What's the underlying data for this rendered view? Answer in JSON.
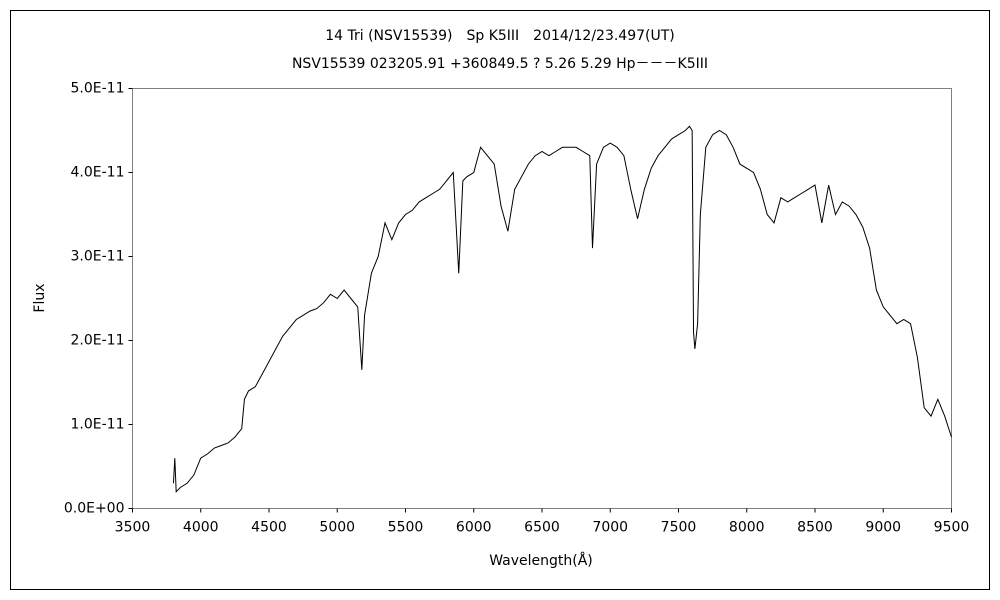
{
  "chart_data": {
    "type": "line",
    "title": "14 Tri (NSV15539)　Sp K5III　2014/12/23.497(UT)",
    "subtitle": "NSV15539 023205.91 +360849.5 ? 5.26 5.29 Hp－－－K5III",
    "x_label": "Wavelength(Å)",
    "y_label": "Flux",
    "color": "#000000",
    "xlim": [
      3500,
      9500
    ],
    "xticks": [
      3500,
      4000,
      4500,
      5000,
      5500,
      6000,
      6500,
      7000,
      7500,
      8000,
      8500,
      9000,
      9500
    ],
    "ylim": [
      0,
      5e-11
    ],
    "yticks": [
      {
        "value": 0,
        "label": "0.0E+00"
      },
      {
        "value": 1e-11,
        "label": "1.0E-11"
      },
      {
        "value": 2e-11,
        "label": "2.0E-11"
      },
      {
        "value": 3e-11,
        "label": "3.0E-11"
      },
      {
        "value": 4e-11,
        "label": "4.0E-11"
      },
      {
        "value": 5e-11,
        "label": "5.0E-11"
      }
    ],
    "x": [
      3800,
      3810,
      3820,
      3850,
      3900,
      3950,
      4000,
      4050,
      4100,
      4150,
      4200,
      4250,
      4300,
      4320,
      4350,
      4400,
      4450,
      4500,
      4550,
      4600,
      4650,
      4700,
      4750,
      4800,
      4850,
      4900,
      4950,
      5000,
      5050,
      5100,
      5150,
      5180,
      5200,
      5250,
      5300,
      5350,
      5400,
      5450,
      5500,
      5550,
      5600,
      5650,
      5700,
      5750,
      5800,
      5850,
      5890,
      5920,
      5950,
      6000,
      6050,
      6100,
      6150,
      6200,
      6250,
      6280,
      6300,
      6350,
      6400,
      6450,
      6500,
      6550,
      6600,
      6650,
      6700,
      6750,
      6800,
      6850,
      6870,
      6900,
      6950,
      7000,
      7050,
      7100,
      7150,
      7200,
      7250,
      7300,
      7350,
      7400,
      7450,
      7500,
      7550,
      7580,
      7600,
      7610,
      7620,
      7640,
      7660,
      7700,
      7750,
      7800,
      7850,
      7900,
      7950,
      8000,
      8050,
      8100,
      8150,
      8200,
      8250,
      8300,
      8350,
      8400,
      8450,
      8500,
      8550,
      8600,
      8650,
      8700,
      8750,
      8800,
      8850,
      8900,
      8950,
      9000,
      9050,
      9100,
      9150,
      9200,
      9250,
      9300,
      9350,
      9400,
      9450,
      9500
    ],
    "values": [
      3e-12,
      6e-12,
      2e-12,
      2.5e-12,
      3e-12,
      4e-12,
      6e-12,
      6.5e-12,
      7.2e-12,
      7.5e-12,
      7.8e-12,
      8.5e-12,
      9.5e-12,
      1.3e-11,
      1.4e-11,
      1.45e-11,
      1.6e-11,
      1.75e-11,
      1.9e-11,
      2.05e-11,
      2.15e-11,
      2.25e-11,
      2.3e-11,
      2.35e-11,
      2.38e-11,
      2.45e-11,
      2.55e-11,
      2.5e-11,
      2.6e-11,
      2.5e-11,
      2.4e-11,
      1.65e-11,
      2.3e-11,
      2.8e-11,
      3e-11,
      3.4e-11,
      3.2e-11,
      3.4e-11,
      3.5e-11,
      3.55e-11,
      3.65e-11,
      3.7e-11,
      3.75e-11,
      3.8e-11,
      3.9e-11,
      4e-11,
      2.8e-11,
      3.9e-11,
      3.95e-11,
      4e-11,
      4.3e-11,
      4.2e-11,
      4.1e-11,
      3.6e-11,
      3.3e-11,
      3.6e-11,
      3.8e-11,
      3.95e-11,
      4.1e-11,
      4.2e-11,
      4.25e-11,
      4.2e-11,
      4.25e-11,
      4.3e-11,
      4.3e-11,
      4.3e-11,
      4.25e-11,
      4.2e-11,
      3.1e-11,
      4.1e-11,
      4.3e-11,
      4.35e-11,
      4.3e-11,
      4.2e-11,
      3.8e-11,
      3.45e-11,
      3.8e-11,
      4.05e-11,
      4.2e-11,
      4.3e-11,
      4.4e-11,
      4.45e-11,
      4.5e-11,
      4.55e-11,
      4.5e-11,
      2.1e-11,
      1.9e-11,
      2.2e-11,
      3.5e-11,
      4.3e-11,
      4.45e-11,
      4.5e-11,
      4.45e-11,
      4.3e-11,
      4.1e-11,
      4.05e-11,
      4e-11,
      3.8e-11,
      3.5e-11,
      3.4e-11,
      3.7e-11,
      3.65e-11,
      3.7e-11,
      3.75e-11,
      3.8e-11,
      3.85e-11,
      3.4e-11,
      3.85e-11,
      3.5e-11,
      3.65e-11,
      3.6e-11,
      3.5e-11,
      3.35e-11,
      3.1e-11,
      2.6e-11,
      2.4e-11,
      2.3e-11,
      2.2e-11,
      2.25e-11,
      2.2e-11,
      1.8e-11,
      1.2e-11,
      1.1e-11,
      1.3e-11,
      1.1e-11,
      8.5e-12
    ]
  }
}
